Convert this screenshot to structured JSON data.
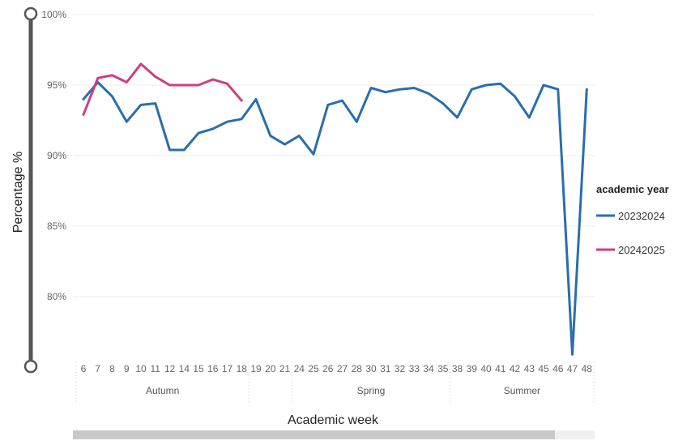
{
  "chart_data": {
    "type": "line",
    "title": "",
    "xlabel": "Academic week",
    "ylabel": "Percentage %",
    "categories": [
      "6",
      "7",
      "8",
      "9",
      "10",
      "11",
      "12",
      "14",
      "15",
      "16",
      "17",
      "18",
      "19",
      "20",
      "21",
      "24",
      "25",
      "26",
      "27",
      "28",
      "30",
      "31",
      "32",
      "33",
      "34",
      "35",
      "38",
      "39",
      "40",
      "41",
      "42",
      "43",
      "45",
      "46",
      "47",
      "48"
    ],
    "sections": [
      {
        "name": "Autumn",
        "from": "6",
        "to": "18"
      },
      {
        "name": "Spring",
        "from": "24",
        "to": "35"
      },
      {
        "name": "Summer",
        "from": "38",
        "to": "48"
      }
    ],
    "yticks": [
      "100%",
      "95%",
      "90%",
      "85%",
      "80%"
    ],
    "ytick_values": [
      100,
      95,
      90,
      85,
      80
    ],
    "ylim": [
      75.5,
      100
    ],
    "grid": true,
    "legend": {
      "title": "academic year",
      "position": "right"
    },
    "series": [
      {
        "name": "20232024",
        "color": "#2a6ead",
        "values": [
          94.0,
          95.2,
          94.2,
          92.4,
          93.6,
          93.7,
          90.4,
          90.4,
          91.6,
          91.9,
          92.4,
          92.6,
          94.0,
          91.4,
          90.8,
          91.4,
          90.1,
          93.6,
          93.9,
          92.4,
          94.8,
          94.5,
          94.7,
          94.8,
          94.4,
          93.7,
          92.7,
          94.7,
          95.0,
          95.1,
          94.2,
          92.7,
          95.0,
          94.7,
          75.9,
          94.7
        ]
      },
      {
        "name": "20242025",
        "color": "#c94080",
        "values": [
          92.9,
          95.5,
          95.7,
          95.2,
          96.5,
          95.6,
          95.0,
          95.0,
          95.0,
          95.4,
          95.1,
          93.9,
          null,
          null,
          null,
          null,
          null,
          null,
          null,
          null,
          null,
          null,
          null,
          null,
          null,
          null,
          null,
          null,
          null,
          null,
          null,
          null,
          null,
          null,
          null,
          null
        ]
      }
    ]
  }
}
